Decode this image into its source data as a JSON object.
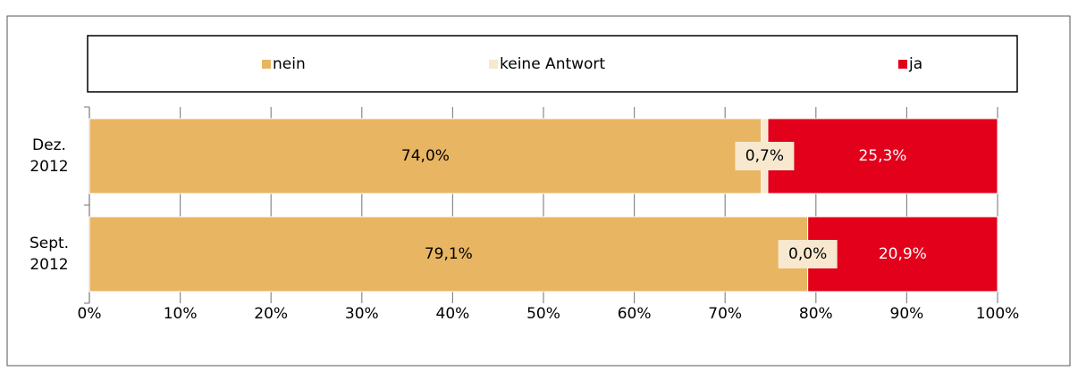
{
  "chart_data": {
    "type": "stacked_barh",
    "categories": [
      "Dez. 2012",
      "Sept. 2012"
    ],
    "series": [
      {
        "name": "nein",
        "color": "#e8b563",
        "values": [
          74.0,
          79.1
        ],
        "value_labels": [
          "74,0%",
          "79,1%"
        ]
      },
      {
        "name": "keine Antwort",
        "color": "#f7e8cf",
        "values": [
          0.7,
          0.0
        ],
        "value_labels": [
          "0,7%",
          "0,0%"
        ]
      },
      {
        "name": "ja",
        "color": "#e2001a",
        "values": [
          25.3,
          20.9
        ],
        "value_labels": [
          "25,3%",
          "20,9%"
        ]
      }
    ],
    "xlim": [
      0,
      100
    ],
    "xticks": [
      {
        "value": 0,
        "label": "0%"
      },
      {
        "value": 10,
        "label": "10%"
      },
      {
        "value": 20,
        "label": "20%"
      },
      {
        "value": 30,
        "label": "30%"
      },
      {
        "value": 40,
        "label": "40%"
      },
      {
        "value": 50,
        "label": "50%"
      },
      {
        "value": 60,
        "label": "60%"
      },
      {
        "value": 70,
        "label": "70%"
      },
      {
        "value": 80,
        "label": "80%"
      },
      {
        "value": 90,
        "label": "90%"
      },
      {
        "value": 100,
        "label": "100%"
      }
    ],
    "grid": true,
    "legend": "top"
  }
}
